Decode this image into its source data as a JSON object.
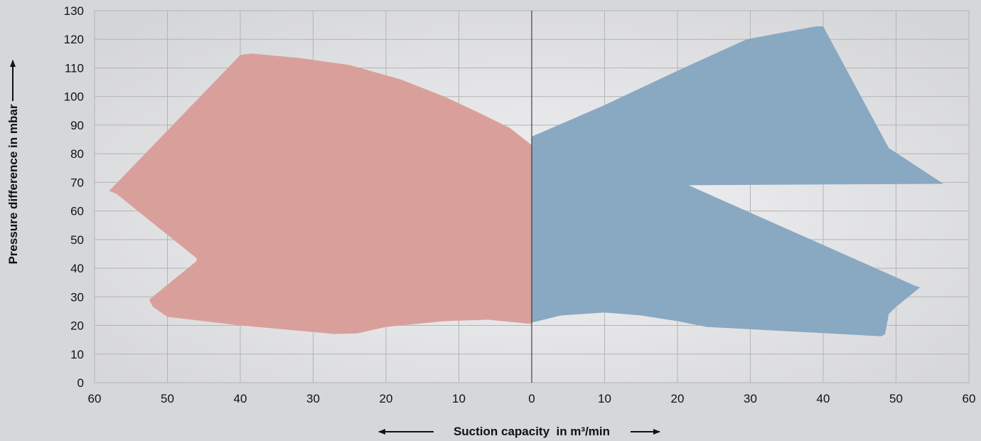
{
  "chart_data": {
    "type": "area",
    "xlabel": "Suction capacity  in m³/min",
    "ylabel": "Pressure difference in mbar",
    "x_axis": {
      "range": [
        -60,
        60
      ],
      "ticks": [
        -60,
        -50,
        -40,
        -30,
        -20,
        -10,
        0,
        10,
        20,
        30,
        40,
        50,
        60
      ],
      "tick_labels": [
        "60",
        "50",
        "40",
        "30",
        "20",
        "10",
        "0",
        "10",
        "20",
        "30",
        "40",
        "50",
        "60"
      ]
    },
    "y_axis": {
      "range": [
        0,
        130
      ],
      "ticks": [
        0,
        10,
        20,
        30,
        40,
        50,
        60,
        70,
        80,
        90,
        100,
        110,
        120,
        130
      ],
      "tick_labels": [
        "0",
        "10",
        "20",
        "30",
        "40",
        "50",
        "60",
        "70",
        "80",
        "90",
        "100",
        "110",
        "120",
        "130"
      ]
    },
    "grid": true,
    "series": [
      {
        "region": "left",
        "color": "#d9a09b",
        "points": [
          [
            0,
            83
          ],
          [
            -3,
            89
          ],
          [
            -7,
            94
          ],
          [
            -12,
            100
          ],
          [
            -18,
            106
          ],
          [
            -25,
            111
          ],
          [
            -32,
            113.5
          ],
          [
            -38.5,
            115
          ],
          [
            -40,
            114.5
          ],
          [
            -58,
            67
          ],
          [
            -57,
            66
          ],
          [
            -46,
            43.5
          ],
          [
            -46,
            42.5
          ],
          [
            -52.5,
            29
          ],
          [
            -52,
            26.5
          ],
          [
            -50,
            23
          ],
          [
            -40,
            20
          ],
          [
            -27,
            17
          ],
          [
            -24,
            17.2
          ],
          [
            -20,
            19.5
          ],
          [
            -12,
            21.5
          ],
          [
            -6,
            22
          ],
          [
            0,
            20.5
          ]
        ]
      },
      {
        "region": "right",
        "color": "#89a8c2",
        "points": [
          [
            0,
            21
          ],
          [
            4,
            23.5
          ],
          [
            10,
            24.5
          ],
          [
            15,
            23.5
          ],
          [
            20,
            21.5
          ],
          [
            24,
            19.5
          ],
          [
            35,
            18
          ],
          [
            48,
            16.2
          ],
          [
            48.5,
            17
          ],
          [
            49,
            24
          ],
          [
            50,
            26.5
          ],
          [
            53.3,
            33.3
          ],
          [
            52.5,
            34
          ],
          [
            21.5,
            69
          ],
          [
            56.5,
            69.5
          ],
          [
            49,
            82
          ],
          [
            40,
            124.5
          ],
          [
            39,
            124.5
          ],
          [
            29.5,
            120
          ],
          [
            20,
            109
          ],
          [
            10,
            97
          ],
          [
            0,
            86
          ]
        ]
      }
    ]
  }
}
